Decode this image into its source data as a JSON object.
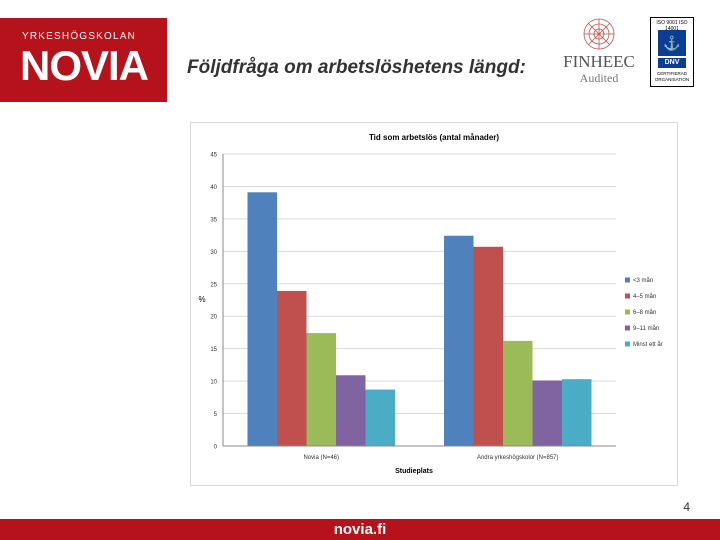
{
  "logo": {
    "top_text": "YRKESHÖGSKOLAN",
    "main_text": "NOVIA"
  },
  "slide": {
    "title": "Följdfråga om arbetslöshetens längd:",
    "page_number": "4"
  },
  "finheec": {
    "name": "FINHEEC",
    "subtitle": "Audited"
  },
  "certification": {
    "top_text": "ISO 9001  ISO 14001",
    "mark_text": "DNV",
    "bottom_text": "CERTIFIERAD ORGANISATION"
  },
  "footer": {
    "url": "novia.fi"
  },
  "colors": {
    "brand_red": "#b5121b",
    "series": [
      "#4f81bd",
      "#c0504d",
      "#9bbb59",
      "#8064a2",
      "#4bacc6"
    ]
  },
  "chart_data": {
    "type": "bar",
    "title": "Tid som arbetslös (antal månader)",
    "xlabel": "Studieplats",
    "ylabel": "%",
    "ylim": [
      0,
      45
    ],
    "yticks": [
      0,
      5,
      10,
      15,
      20,
      25,
      30,
      35,
      40,
      45
    ],
    "categories": [
      "Novia (N=46)",
      "Andra yrkeshögskolor (N=857)"
    ],
    "series": [
      {
        "name": "<3 mån",
        "values": [
          39.1,
          32.4
        ]
      },
      {
        "name": "4–5 mån",
        "values": [
          23.9,
          30.7
        ]
      },
      {
        "name": "6–8 mån",
        "values": [
          17.4,
          16.2
        ]
      },
      {
        "name": "9–11 mån",
        "values": [
          10.9,
          10.1
        ]
      },
      {
        "name": "Minst ett år",
        "values": [
          8.7,
          10.3
        ]
      }
    ],
    "grid": true,
    "legend": "right"
  }
}
